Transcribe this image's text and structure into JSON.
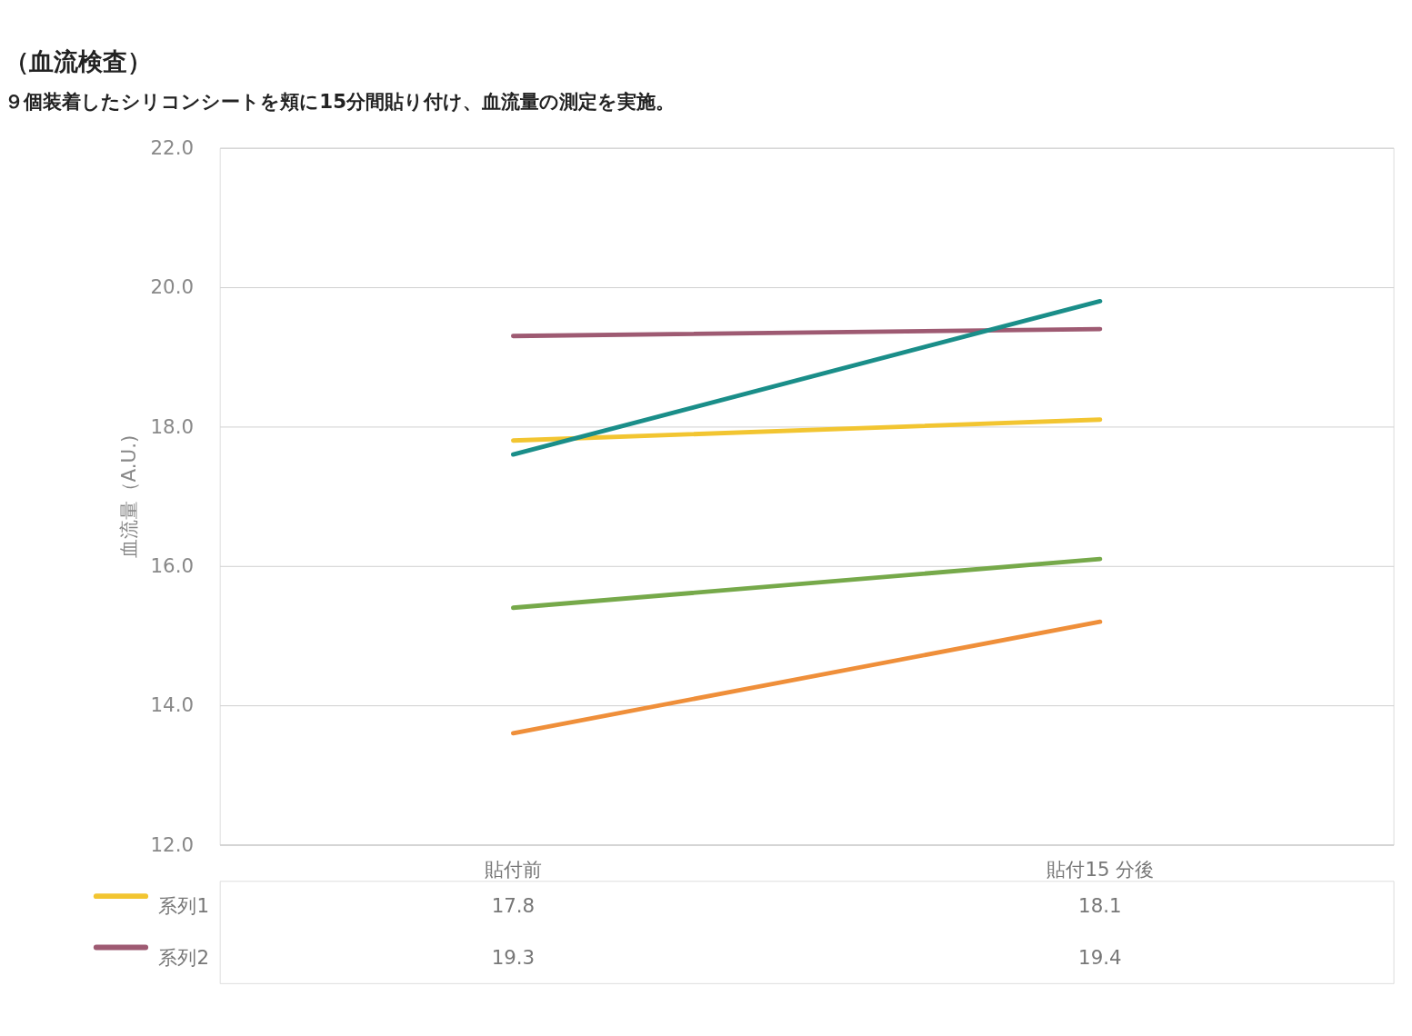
{
  "chart_data": {
    "type": "line",
    "title": "（血流検査）",
    "subtitle": "９個装着したシリコンシートを頬に15分間貼り付け、血流量の測定を実施。",
    "ylabel": "血流量（A.U.)",
    "categories": [
      "貼付前",
      "貼付15 分後"
    ],
    "series": [
      {
        "name": "系列1",
        "color": "#f2c531",
        "values": [
          17.8,
          18.1
        ],
        "value_labels": [
          "17.8",
          "18.1"
        ]
      },
      {
        "name": "系列2",
        "color": "#9e5a72",
        "values": [
          19.3,
          19.4
        ],
        "value_labels": [
          "19.3",
          "19.4"
        ]
      },
      {
        "color": "#1a8e89",
        "values": [
          17.6,
          19.8
        ]
      },
      {
        "color": "#76a94a",
        "values": [
          15.4,
          16.1
        ]
      },
      {
        "color": "#ef8f3a",
        "values": [
          13.6,
          15.2
        ]
      }
    ],
    "ylim": [
      12,
      22
    ],
    "yticks": [
      {
        "value": 12,
        "label": "12.0"
      },
      {
        "value": 14,
        "label": "14.0"
      },
      {
        "value": 16,
        "label": "16.0"
      },
      {
        "value": 18,
        "label": "18.0"
      },
      {
        "value": 20,
        "label": "20.0"
      },
      {
        "value": 22,
        "label": "22.0"
      }
    ],
    "grid": "y",
    "legend": "bottom",
    "marker": "none",
    "line_style": "solid"
  }
}
